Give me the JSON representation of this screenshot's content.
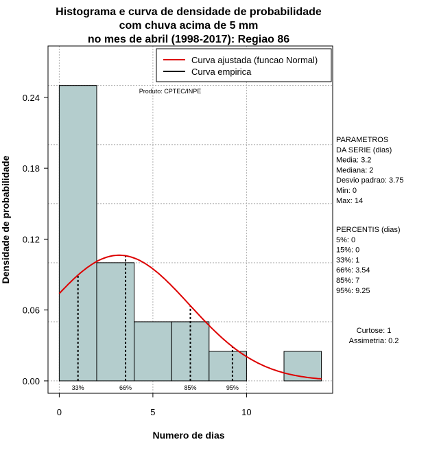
{
  "chart_data": {
    "type": "bar",
    "title_lines": [
      "Histograma e curva de densidade de probabilidade",
      "com chuva acima de 5 mm",
      "no mes de abril (1998-2017): Regiao 86"
    ],
    "xlabel": "Numero de dias",
    "ylabel": "Densidade de probabilidade",
    "xlim": [
      -0.6,
      14.6
    ],
    "ylim": [
      -0.0105,
      0.2835
    ],
    "x_ticks": [
      0,
      5,
      10
    ],
    "y_ticks": [
      0.0,
      0.06,
      0.12,
      0.18,
      0.24
    ],
    "y_tick_labels": [
      "0.00",
      "0.06",
      "0.12",
      "0.18",
      "0.24"
    ],
    "grid_x": [
      0,
      5,
      10
    ],
    "grid_y": [
      0.0,
      0.05,
      0.1,
      0.15,
      0.2,
      0.25
    ],
    "bins": [
      {
        "start": 0,
        "end": 2,
        "density": 0.25
      },
      {
        "start": 2,
        "end": 4,
        "density": 0.1
      },
      {
        "start": 4,
        "end": 6,
        "density": 0.05
      },
      {
        "start": 6,
        "end": 8,
        "density": 0.05
      },
      {
        "start": 8,
        "end": 10,
        "density": 0.025
      },
      {
        "start": 10,
        "end": 12,
        "density": 0.0
      },
      {
        "start": 12,
        "end": 14,
        "density": 0.025
      }
    ],
    "fitted_curve": {
      "name": "Curva ajustada (funcao Normal)",
      "mean": 3.2,
      "sd": 3.75,
      "x_range": [
        0,
        14
      ],
      "color": "#dd0000"
    },
    "empirical_curve": {
      "name": "Curva empirica",
      "color": "#000000"
    },
    "percentile_marks": [
      {
        "label": "33%",
        "x": 1
      },
      {
        "label": "66%",
        "x": 3.54
      },
      {
        "label": "85%",
        "x": 7
      },
      {
        "label": "95%",
        "x": 9.25
      }
    ],
    "source_label": "Produto: CPTEC/INPE",
    "legend_position": "top-right",
    "bar_color": "#b4cdcd",
    "side_panel": {
      "params_lines": [
        "PARAMETROS",
        "DA SERIE (dias)",
        "  Media: 3.2",
        "  Mediana: 2",
        "  Desvio padrao: 3.75",
        "  Min: 0",
        "  Max: 14"
      ],
      "percentis_lines": [
        "PERCENTIS (dias)",
        "  5%: 0",
        "  15%: 0",
        "  33%: 1",
        "  66%: 3.54",
        "  85%: 7",
        "  95%: 9.25"
      ],
      "stats_lines": [
        "Curtose: 1",
        "Assimetria: 0.2"
      ]
    }
  }
}
